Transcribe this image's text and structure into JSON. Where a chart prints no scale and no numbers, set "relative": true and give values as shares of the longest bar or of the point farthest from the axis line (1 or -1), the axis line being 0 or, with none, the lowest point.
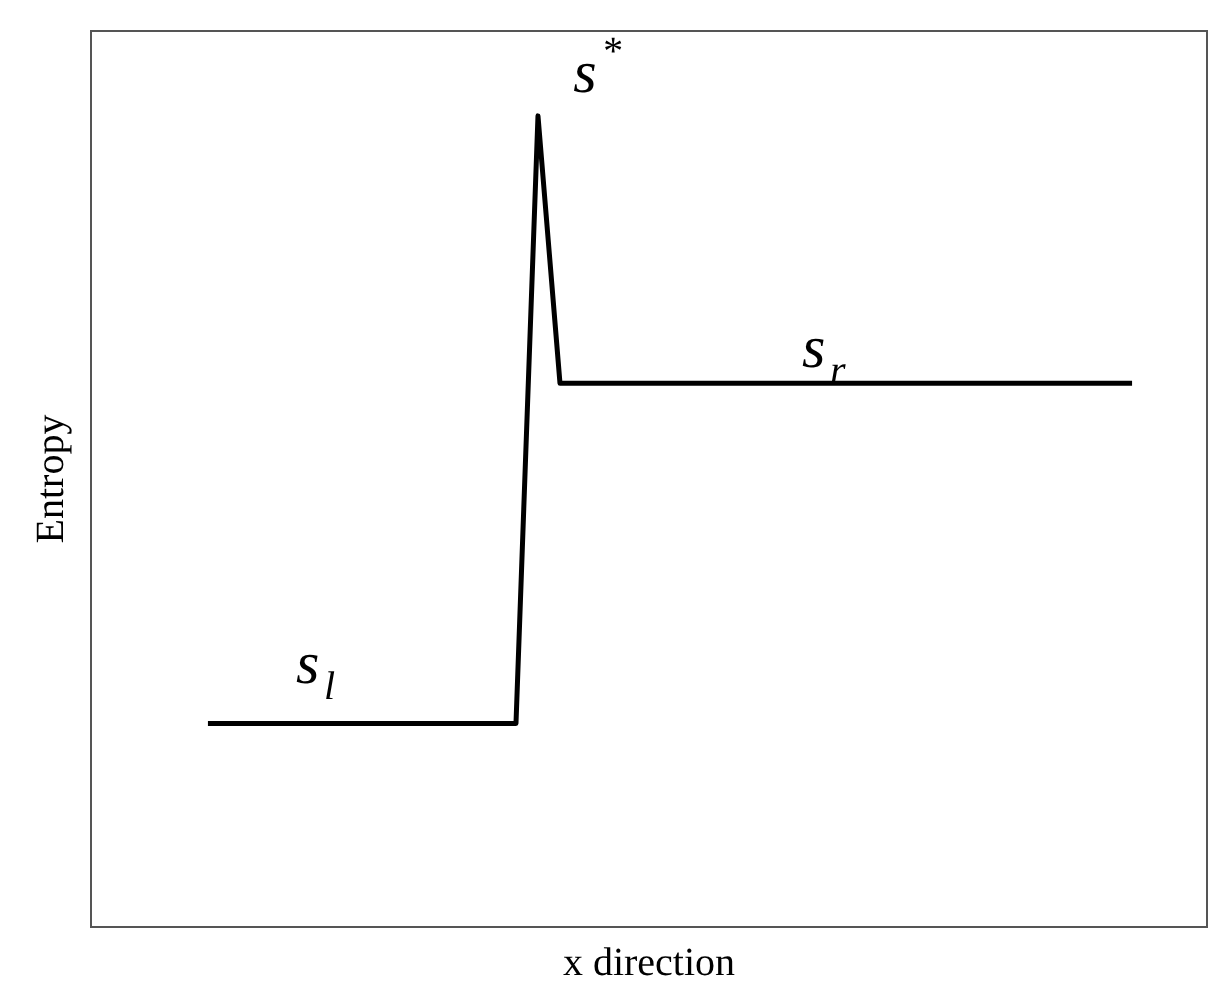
{
  "chart_data": {
    "type": "line",
    "relative": true,
    "xlabel": "x direction",
    "ylabel": "Entropy",
    "categories": [
      null,
      null,
      null,
      null,
      null,
      null,
      null,
      null,
      null,
      null,
      null,
      null,
      null,
      null,
      null,
      null,
      null,
      null,
      null,
      null,
      null,
      null,
      null,
      null,
      null,
      null,
      null,
      null,
      null,
      null,
      null,
      null,
      null,
      null,
      null,
      null,
      null,
      null,
      null,
      null,
      null,
      null,
      null
    ],
    "series": [
      {
        "color": "#000000",
        "values": [
          0.25,
          0.25,
          0.25,
          0.25,
          0.25,
          0.25,
          0.25,
          0.25,
          0.25,
          0.25,
          0.25,
          0.25,
          0.25,
          0.25,
          0.25,
          1,
          0.67,
          0.67,
          0.67,
          0.67,
          0.67,
          0.67,
          0.67,
          0.67,
          0.67,
          0.67,
          0.67,
          0.67,
          0.67,
          0.67,
          0.67,
          0.67,
          0.67,
          0.67,
          0.67,
          0.67,
          0.67,
          0.67,
          0.67,
          0.67,
          0.67,
          0.67,
          0.67
        ]
      }
    ],
    "annotations": [
      "s$_{l}$",
      "s$^{*}$",
      "s$_{r}$"
    ],
    "grid": false,
    "marker": "none",
    "line_style": "solid"
  }
}
